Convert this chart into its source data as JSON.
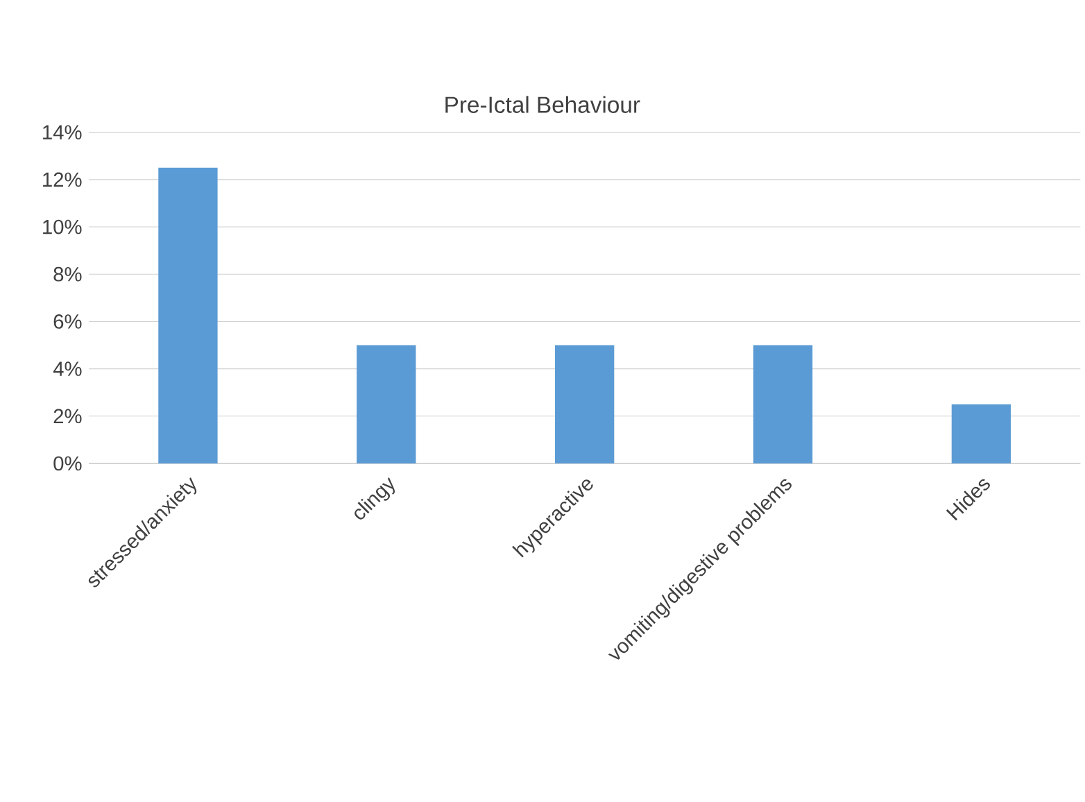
{
  "chart_data": {
    "type": "bar",
    "title": "Pre-Ictal Behaviour",
    "categories": [
      "stressed/anxiety",
      "clingy",
      "hyperactive",
      "vomiting/digestive problems",
      "Hides"
    ],
    "values": [
      12.5,
      5,
      5,
      5,
      2.5
    ],
    "color": "#5b9bd5",
    "ylim": [
      0,
      14
    ],
    "yticks": [
      {
        "value": 0,
        "label": "0%"
      },
      {
        "value": 2,
        "label": "2%"
      },
      {
        "value": 4,
        "label": "4%"
      },
      {
        "value": 6,
        "label": "6%"
      },
      {
        "value": 8,
        "label": "8%"
      },
      {
        "value": 10,
        "label": "10%"
      },
      {
        "value": 12,
        "label": "12%"
      },
      {
        "value": 14,
        "label": "14%"
      }
    ],
    "grid": "y"
  }
}
